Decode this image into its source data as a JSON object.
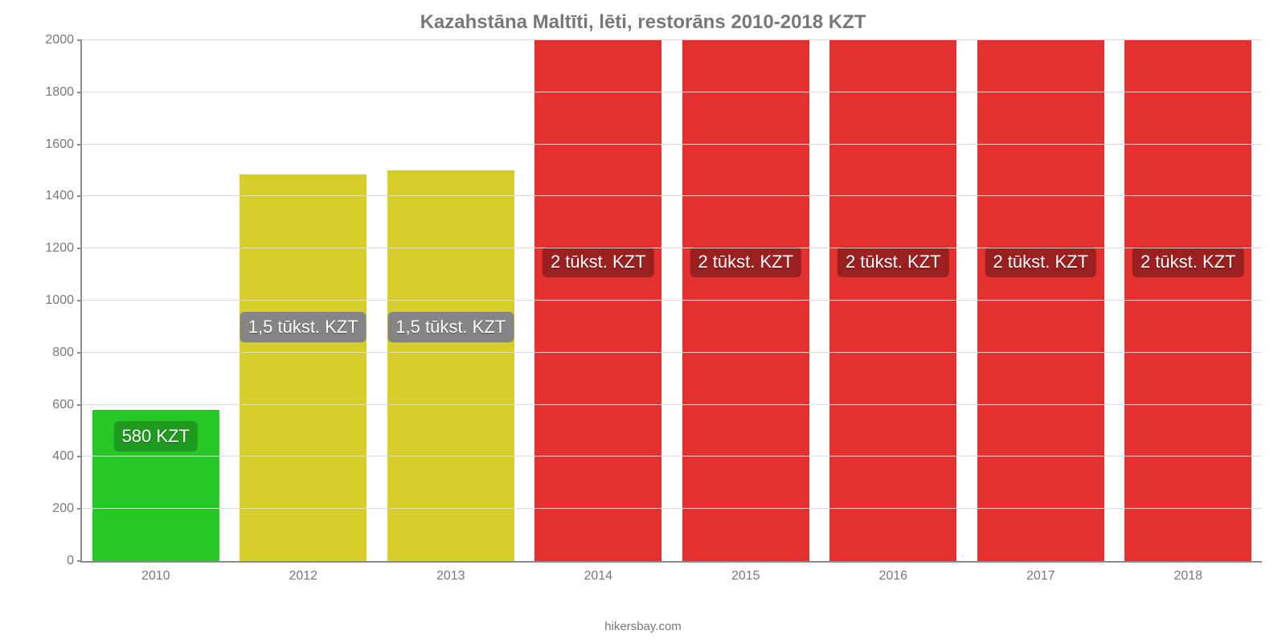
{
  "chart": {
    "type": "bar",
    "title": "Kazahstāna Maltīti, lēti, restorāns 2010-2018 KZT",
    "title_fontsize": 24,
    "title_color": "#77787a",
    "attribution": "hikersbay.com",
    "attribution_color": "#77787a",
    "attribution_fontsize": 15,
    "background_color": "#ffffff",
    "axis_color": "#8a8c8e",
    "grid_color": "#dadbdc",
    "tick_label_color": "#77787a",
    "tick_fontsize": 16,
    "ylim_min": 0,
    "ylim_max": 2000,
    "ytick_step": 200,
    "yticks": [
      0,
      200,
      400,
      600,
      800,
      1000,
      1200,
      1400,
      1600,
      1800,
      2000
    ],
    "bar_width_pct": 86,
    "bars": [
      {
        "category": "2010",
        "value": 580,
        "color": "#28c728",
        "label_text": "580 KZT",
        "label_bg": "#1f9a1f",
        "label_y": 420
      },
      {
        "category": "2012",
        "value": 1485,
        "color": "#d6ce2a",
        "label_text": "1,5 tūkst. KZT",
        "label_bg": "#858585",
        "label_y": 840
      },
      {
        "category": "2013",
        "value": 1500,
        "color": "#d6ce2a",
        "label_text": "1,5 tūkst. KZT",
        "label_bg": "#858585",
        "label_y": 840
      },
      {
        "category": "2014",
        "value": 2000,
        "color": "#e53030",
        "label_text": "2 tūkst. KZT",
        "label_bg": "#9a2020",
        "label_y": 1090
      },
      {
        "category": "2015",
        "value": 2000,
        "color": "#e53030",
        "label_text": "2 tūkst. KZT",
        "label_bg": "#9a2020",
        "label_y": 1090
      },
      {
        "category": "2016",
        "value": 2000,
        "color": "#e53030",
        "label_text": "2 tūkst. KZT",
        "label_bg": "#9a2020",
        "label_y": 1090
      },
      {
        "category": "2017",
        "value": 2000,
        "color": "#e53030",
        "label_text": "2 tūkst. KZT",
        "label_bg": "#9a2020",
        "label_y": 1090
      },
      {
        "category": "2018",
        "value": 2000,
        "color": "#e53030",
        "label_text": "2 tūkst. KZT",
        "label_bg": "#9a2020",
        "label_y": 1090
      }
    ],
    "bar_label_fontsize": 22,
    "bar_label_color": "#ffffff"
  }
}
